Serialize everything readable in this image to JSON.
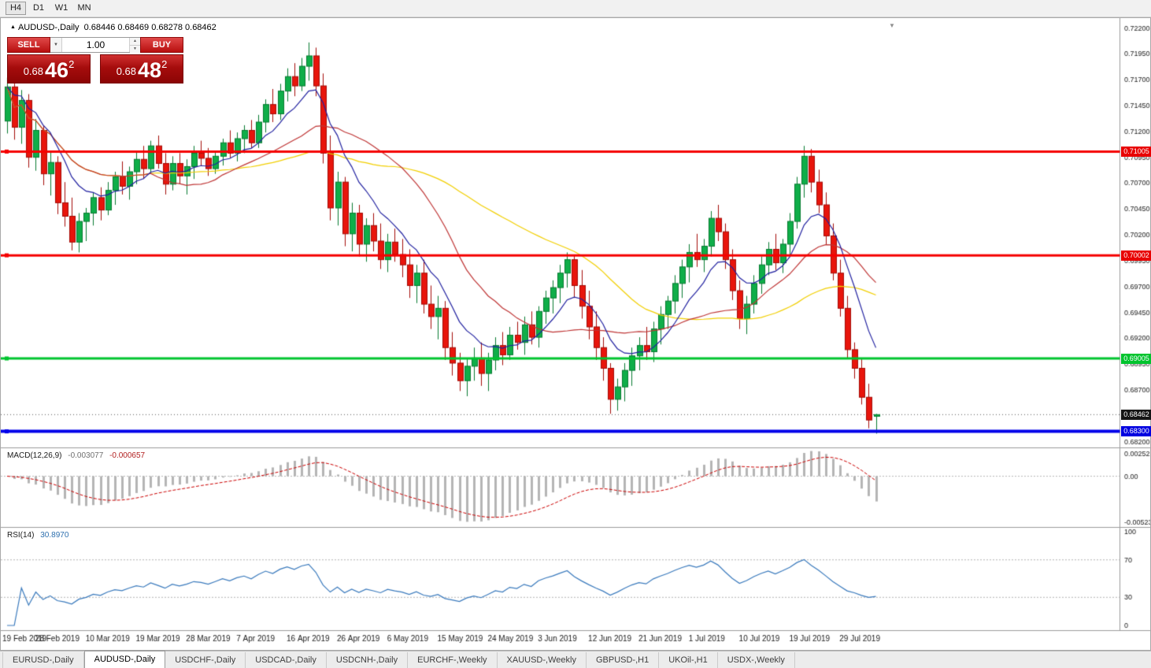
{
  "toolbar": {
    "timeframes": [
      "H4",
      "D1",
      "W1",
      "MN"
    ],
    "active": "H4"
  },
  "chart": {
    "title_symbol": "AUDUSD-,Daily",
    "title_ohlc": "0.68446 0.68469 0.68278 0.68462"
  },
  "trade_panel": {
    "sell_label": "SELL",
    "buy_label": "BUY",
    "volume": "1.00",
    "sell_price": {
      "base": "0.68",
      "big": "46",
      "sup": "2"
    },
    "buy_price": {
      "base": "0.68",
      "big": "48",
      "sup": "2"
    }
  },
  "indicators": {
    "macd": {
      "name": "MACD(12,26,9)",
      "main_value": "-0.003077",
      "signal_value": "-0.000657",
      "axis_max": "0.0025220",
      "axis_zero": "0.00",
      "axis_min": "-0.0052340"
    },
    "rsi": {
      "name": "RSI(14)",
      "value": "30.8970",
      "levels": [
        100,
        70,
        30,
        0
      ]
    }
  },
  "price_tags": {
    "r1": "0.71005",
    "r2": "0.70002",
    "s1": "0.69005",
    "current": "0.68462",
    "s2": "0.68300"
  },
  "tabbar": {
    "tabs": [
      "EURUSD-,Daily",
      "AUDUSD-,Daily",
      "USDCHF-,Daily",
      "USDCAD-,Daily",
      "USDCNH-,Daily",
      "EURCHF-,Weekly",
      "XAUUSD-,Weekly",
      "GBPUSD-,H1",
      "UKOil-,H1",
      "USDX-,Weekly"
    ],
    "active_index": 1
  },
  "chart_data": {
    "type": "candlestick",
    "title": "AUDUSD-,Daily",
    "symbol": "AUDUSD",
    "timeframe": "Daily",
    "y_axis": {
      "min": 0.682,
      "max": 0.722,
      "step": 0.0025
    },
    "x_labels": [
      "19 Feb 2019",
      "28 Feb 2019",
      "10 Mar 2019",
      "19 Mar 2019",
      "28 Mar 2019",
      "7 Apr 2019",
      "16 Apr 2019",
      "26 Apr 2019",
      "6 May 2019",
      "15 May 2019",
      "24 May 2019",
      "3 Jun 2019",
      "12 Jun 2019",
      "21 Jun 2019",
      "1 Jul 2019",
      "10 Jul 2019",
      "19 Jul 2019",
      "29 Jul 2019"
    ],
    "x_label_every": 7,
    "current_price": 0.68462,
    "levels": [
      {
        "price": 0.71005,
        "color": "#f50000",
        "width": 3,
        "label": "0.71005"
      },
      {
        "price": 0.70002,
        "color": "#f50000",
        "width": 3,
        "label": "0.70002"
      },
      {
        "price": 0.69005,
        "color": "#00c42e",
        "width": 3,
        "label": "0.69005"
      },
      {
        "price": 0.683,
        "color": "#0000ea",
        "width": 4,
        "label": "0.68300"
      }
    ],
    "moving_averages": [
      {
        "period": 9,
        "type": "ema",
        "color": "#2020a0"
      },
      {
        "period": 21,
        "type": "sma",
        "color": "#bf3434"
      },
      {
        "period": 45,
        "type": "sma",
        "color": "#f2cf00"
      }
    ],
    "macd_params": [
      12,
      26,
      9
    ],
    "rsi_period": 14,
    "colors": {
      "candle_up": "#0fae49",
      "candle_up_border": "#067a30",
      "candle_down": "#e8150c",
      "candle_down_border": "#a30c07",
      "macd_histogram": "#b5b5b5",
      "macd_signal": "#cc0000",
      "rsi_line": "#3a7abd",
      "rsi_levels_line": "#b4b4b4",
      "current_price_line": "#555555"
    },
    "candles": [
      [
        0.713,
        0.7172,
        0.7118,
        0.7163
      ],
      [
        0.7163,
        0.7168,
        0.7112,
        0.7124
      ],
      [
        0.7124,
        0.716,
        0.7108,
        0.715
      ],
      [
        0.715,
        0.7156,
        0.7085,
        0.7095
      ],
      [
        0.7095,
        0.7132,
        0.7082,
        0.7121
      ],
      [
        0.7121,
        0.7126,
        0.7068,
        0.7079
      ],
      [
        0.7079,
        0.7101,
        0.7058,
        0.709
      ],
      [
        0.709,
        0.7096,
        0.704,
        0.7051
      ],
      [
        0.7051,
        0.7071,
        0.7028,
        0.7038
      ],
      [
        0.7038,
        0.7056,
        0.7005,
        0.7013
      ],
      [
        0.7013,
        0.7041,
        0.7003,
        0.7033
      ],
      [
        0.7033,
        0.7046,
        0.7014,
        0.7041
      ],
      [
        0.7041,
        0.7061,
        0.7029,
        0.7056
      ],
      [
        0.7056,
        0.7066,
        0.7034,
        0.7044
      ],
      [
        0.7044,
        0.7071,
        0.7039,
        0.7063
      ],
      [
        0.7063,
        0.7081,
        0.7049,
        0.7076
      ],
      [
        0.7076,
        0.7091,
        0.7059,
        0.7067
      ],
      [
        0.7067,
        0.7086,
        0.7054,
        0.7081
      ],
      [
        0.7081,
        0.7101,
        0.7069,
        0.7093
      ],
      [
        0.7093,
        0.7106,
        0.7074,
        0.7084
      ],
      [
        0.7084,
        0.7111,
        0.7079,
        0.7106
      ],
      [
        0.7106,
        0.7116,
        0.7084,
        0.7089
      ],
      [
        0.7089,
        0.7099,
        0.7059,
        0.7069
      ],
      [
        0.7069,
        0.7096,
        0.7063,
        0.7089
      ],
      [
        0.7089,
        0.7099,
        0.7069,
        0.7077
      ],
      [
        0.7077,
        0.7093,
        0.7059,
        0.7086
      ],
      [
        0.7086,
        0.7106,
        0.7074,
        0.7099
      ],
      [
        0.7099,
        0.7111,
        0.7087,
        0.7094
      ],
      [
        0.7094,
        0.7104,
        0.7077,
        0.7084
      ],
      [
        0.7084,
        0.7101,
        0.7079,
        0.7096
      ],
      [
        0.7096,
        0.7113,
        0.7087,
        0.7109
      ],
      [
        0.7109,
        0.7121,
        0.7094,
        0.7099
      ],
      [
        0.7099,
        0.7119,
        0.7091,
        0.7113
      ],
      [
        0.7113,
        0.7126,
        0.7099,
        0.7121
      ],
      [
        0.7121,
        0.7131,
        0.7104,
        0.7109
      ],
      [
        0.7109,
        0.7136,
        0.7104,
        0.7129
      ],
      [
        0.7129,
        0.7151,
        0.7119,
        0.7146
      ],
      [
        0.7146,
        0.7161,
        0.7129,
        0.7137
      ],
      [
        0.7137,
        0.7166,
        0.7131,
        0.7159
      ],
      [
        0.7159,
        0.7181,
        0.7149,
        0.7173
      ],
      [
        0.7173,
        0.7186,
        0.7154,
        0.7164
      ],
      [
        0.7164,
        0.7191,
        0.7159,
        0.7183
      ],
      [
        0.7183,
        0.7206,
        0.7169,
        0.7193
      ],
      [
        0.7193,
        0.7201,
        0.7154,
        0.7164
      ],
      [
        0.7164,
        0.7176,
        0.7089,
        0.7099
      ],
      [
        0.7099,
        0.7116,
        0.7034,
        0.7046
      ],
      [
        0.7046,
        0.7081,
        0.7029,
        0.7071
      ],
      [
        0.7071,
        0.7076,
        0.7009,
        0.7021
      ],
      [
        0.7021,
        0.7051,
        0.7004,
        0.7041
      ],
      [
        0.7041,
        0.7049,
        0.6999,
        0.7011
      ],
      [
        0.7011,
        0.7036,
        0.6994,
        0.7029
      ],
      [
        0.7029,
        0.7041,
        0.7004,
        0.7014
      ],
      [
        0.7014,
        0.7031,
        0.6987,
        0.6996
      ],
      [
        0.6996,
        0.7021,
        0.6984,
        0.7013
      ],
      [
        0.7013,
        0.7026,
        0.6994,
        0.7001
      ],
      [
        0.7001,
        0.7016,
        0.6979,
        0.6991
      ],
      [
        0.6991,
        0.7006,
        0.6959,
        0.6971
      ],
      [
        0.6971,
        0.6991,
        0.6954,
        0.6983
      ],
      [
        0.6983,
        0.6996,
        0.6944,
        0.6953
      ],
      [
        0.6953,
        0.6971,
        0.6929,
        0.6941
      ],
      [
        0.6941,
        0.6961,
        0.6919,
        0.6949
      ],
      [
        0.6949,
        0.6956,
        0.6899,
        0.6911
      ],
      [
        0.6911,
        0.6926,
        0.6884,
        0.6896
      ],
      [
        0.6896,
        0.6906,
        0.6869,
        0.6879
      ],
      [
        0.6879,
        0.6901,
        0.6864,
        0.6893
      ],
      [
        0.6893,
        0.6911,
        0.6879,
        0.6901
      ],
      [
        0.6901,
        0.6916,
        0.6874,
        0.6886
      ],
      [
        0.6886,
        0.6906,
        0.6869,
        0.6899
      ],
      [
        0.6899,
        0.6921,
        0.6889,
        0.6913
      ],
      [
        0.6913,
        0.6926,
        0.6894,
        0.6904
      ],
      [
        0.6904,
        0.6931,
        0.6899,
        0.6923
      ],
      [
        0.6923,
        0.6936,
        0.6909,
        0.6916
      ],
      [
        0.6916,
        0.6941,
        0.6904,
        0.6933
      ],
      [
        0.6933,
        0.6946,
        0.6914,
        0.6921
      ],
      [
        0.6921,
        0.6951,
        0.6911,
        0.6946
      ],
      [
        0.6946,
        0.6966,
        0.6934,
        0.6959
      ],
      [
        0.6959,
        0.6976,
        0.6944,
        0.6969
      ],
      [
        0.6969,
        0.6991,
        0.6954,
        0.6983
      ],
      [
        0.6983,
        0.7003,
        0.6969,
        0.6996
      ],
      [
        0.6996,
        0.7001,
        0.6959,
        0.6971
      ],
      [
        0.6971,
        0.6986,
        0.6939,
        0.6951
      ],
      [
        0.6951,
        0.6966,
        0.6919,
        0.6931
      ],
      [
        0.6931,
        0.6946,
        0.6899,
        0.6911
      ],
      [
        0.6911,
        0.6921,
        0.6879,
        0.6891
      ],
      [
        0.6891,
        0.6896,
        0.6847,
        0.6861
      ],
      [
        0.6861,
        0.6881,
        0.685,
        0.6873
      ],
      [
        0.6873,
        0.6896,
        0.6859,
        0.6889
      ],
      [
        0.6889,
        0.6911,
        0.6874,
        0.6903
      ],
      [
        0.6903,
        0.6921,
        0.6889,
        0.6913
      ],
      [
        0.6913,
        0.6931,
        0.6899,
        0.6907
      ],
      [
        0.6907,
        0.6936,
        0.6897,
        0.6929
      ],
      [
        0.6929,
        0.6951,
        0.6914,
        0.6943
      ],
      [
        0.6943,
        0.6961,
        0.6929,
        0.6956
      ],
      [
        0.6956,
        0.6981,
        0.6944,
        0.6973
      ],
      [
        0.6973,
        0.6996,
        0.6959,
        0.6989
      ],
      [
        0.6989,
        0.7011,
        0.6974,
        0.7003
      ],
      [
        0.7003,
        0.7021,
        0.6989,
        0.6996
      ],
      [
        0.6996,
        0.7016,
        0.6984,
        0.7009
      ],
      [
        0.7009,
        0.7043,
        0.6999,
        0.7036
      ],
      [
        0.7036,
        0.7049,
        0.7014,
        0.7023
      ],
      [
        0.7023,
        0.7031,
        0.6987,
        0.6996
      ],
      [
        0.6996,
        0.7006,
        0.6957,
        0.6966
      ],
      [
        0.6966,
        0.6976,
        0.6929,
        0.6939
      ],
      [
        0.6939,
        0.6961,
        0.6924,
        0.6953
      ],
      [
        0.6953,
        0.6981,
        0.6944,
        0.6973
      ],
      [
        0.6973,
        0.6999,
        0.6963,
        0.6991
      ],
      [
        0.6991,
        0.7013,
        0.6981,
        0.7006
      ],
      [
        0.7006,
        0.7021,
        0.6986,
        0.6993
      ],
      [
        0.6993,
        0.7016,
        0.6983,
        0.7011
      ],
      [
        0.7011,
        0.7041,
        0.7001,
        0.7033
      ],
      [
        0.7033,
        0.7076,
        0.7026,
        0.7069
      ],
      [
        0.7069,
        0.7106,
        0.7056,
        0.7096
      ],
      [
        0.7096,
        0.7103,
        0.7061,
        0.7071
      ],
      [
        0.7071,
        0.7083,
        0.7041,
        0.7049
      ],
      [
        0.7049,
        0.7061,
        0.7011,
        0.7019
      ],
      [
        0.7019,
        0.7031,
        0.6976,
        0.6983
      ],
      [
        0.6983,
        0.6996,
        0.6941,
        0.6949
      ],
      [
        0.6949,
        0.6961,
        0.6901,
        0.6909
      ],
      [
        0.6909,
        0.6916,
        0.6881,
        0.6891
      ],
      [
        0.6891,
        0.6901,
        0.6856,
        0.6863
      ],
      [
        0.6863,
        0.6876,
        0.6833,
        0.6841
      ],
      [
        0.68446,
        0.68469,
        0.68278,
        0.68462
      ]
    ]
  }
}
